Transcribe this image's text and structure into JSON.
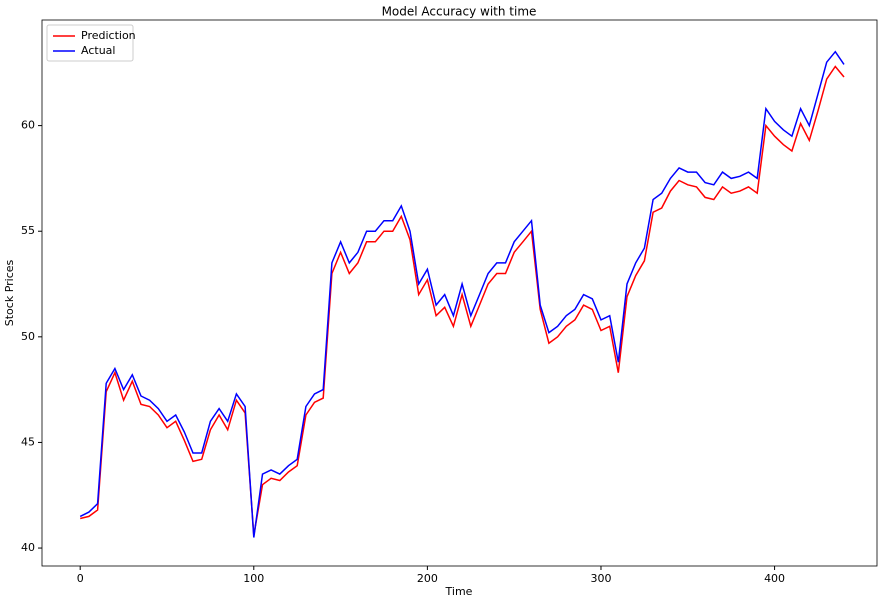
{
  "chart_data": {
    "type": "line",
    "title": "Model Accuracy with time",
    "x_label": "Time",
    "y_label": "Stock Prices",
    "x": [
      0,
      5,
      10,
      15,
      20,
      25,
      30,
      35,
      40,
      45,
      50,
      55,
      60,
      65,
      70,
      75,
      80,
      85,
      90,
      95,
      100,
      105,
      110,
      115,
      120,
      125,
      130,
      135,
      140,
      145,
      150,
      155,
      160,
      165,
      170,
      175,
      180,
      185,
      190,
      195,
      200,
      205,
      210,
      215,
      220,
      225,
      230,
      235,
      240,
      245,
      250,
      255,
      260,
      265,
      270,
      275,
      280,
      285,
      290,
      295,
      300,
      305,
      310,
      315,
      320,
      325,
      330,
      335,
      340,
      345,
      350,
      355,
      360,
      365,
      370,
      375,
      380,
      385,
      390,
      395,
      400,
      405,
      410,
      415,
      420,
      425,
      430,
      435,
      440
    ],
    "series": [
      {
        "name": "Prediction",
        "color": "#ff0000",
        "values": [
          41.4,
          41.5,
          41.8,
          47.4,
          48.3,
          47.0,
          47.9,
          46.8,
          46.7,
          46.3,
          45.7,
          46.0,
          45.1,
          44.1,
          44.2,
          45.6,
          46.3,
          45.6,
          47.0,
          46.4,
          40.6,
          43.0,
          43.3,
          43.2,
          43.6,
          43.9,
          46.3,
          46.9,
          47.1,
          53.0,
          54.0,
          53.0,
          53.5,
          54.5,
          54.5,
          55.0,
          55.0,
          55.7,
          54.6,
          52.0,
          52.7,
          51.0,
          51.4,
          50.5,
          52.0,
          50.5,
          51.5,
          52.5,
          53.0,
          53.0,
          54.0,
          54.5,
          55.0,
          51.3,
          49.7,
          50.0,
          50.5,
          50.8,
          51.5,
          51.3,
          50.3,
          50.5,
          48.3,
          51.9,
          52.9,
          53.6,
          55.9,
          56.1,
          56.9,
          57.4,
          57.2,
          57.1,
          56.6,
          56.5,
          57.1,
          56.8,
          56.9,
          57.1,
          56.8,
          60.0,
          59.5,
          59.1,
          58.8,
          60.1,
          59.3,
          60.7,
          62.2,
          62.8,
          62.3
        ]
      },
      {
        "name": "Actual",
        "color": "#0000ff",
        "values": [
          41.5,
          41.7,
          42.1,
          47.8,
          48.5,
          47.5,
          48.2,
          47.2,
          47.0,
          46.6,
          46.0,
          46.3,
          45.5,
          44.5,
          44.5,
          46.0,
          46.6,
          46.0,
          47.3,
          46.7,
          40.5,
          43.5,
          43.7,
          43.5,
          43.9,
          44.2,
          46.7,
          47.3,
          47.5,
          53.5,
          54.5,
          53.5,
          54.0,
          55.0,
          55.0,
          55.5,
          55.5,
          56.2,
          55.0,
          52.5,
          53.2,
          51.5,
          52.0,
          51.0,
          52.5,
          51.0,
          52.0,
          53.0,
          53.5,
          53.5,
          54.5,
          55.0,
          55.5,
          51.5,
          50.2,
          50.5,
          51.0,
          51.3,
          52.0,
          51.8,
          50.8,
          51.0,
          48.8,
          52.5,
          53.5,
          54.2,
          56.5,
          56.8,
          57.5,
          58.0,
          57.8,
          57.8,
          57.3,
          57.2,
          57.8,
          57.5,
          57.6,
          57.8,
          57.5,
          60.8,
          60.2,
          59.8,
          59.5,
          60.8,
          60.0,
          61.5,
          63.0,
          63.5,
          62.9
        ]
      }
    ],
    "xlim": [
      -22,
      459
    ],
    "xticks": [
      0,
      100,
      200,
      300,
      400
    ],
    "ylim": [
      39.15,
      65.0
    ],
    "yticks": [
      40,
      45,
      50,
      55,
      60
    ],
    "grid": false,
    "legend": "upper left"
  }
}
